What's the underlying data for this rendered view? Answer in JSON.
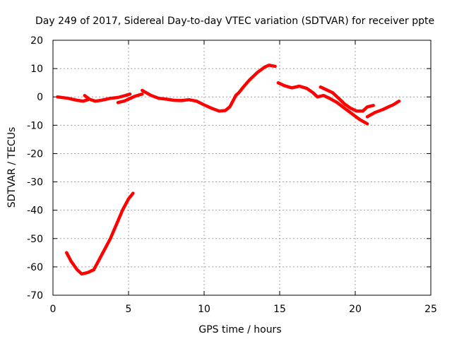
{
  "chart_data": {
    "type": "scatter",
    "title": "Day 249 of 2017, Sidereal Day-to-day VTEC variation (SDTVAR) for receiver ppte",
    "xlabel": "GPS time / hours",
    "ylabel": "SDTVAR / TECUs",
    "xlim": [
      0,
      25
    ],
    "ylim": [
      -70,
      20
    ],
    "xticks": [
      0,
      5,
      10,
      15,
      20,
      25
    ],
    "yticks": [
      -70,
      -60,
      -50,
      -40,
      -30,
      -20,
      -10,
      0,
      10,
      20
    ],
    "grid": true,
    "series_color": "#ff0000",
    "series": [
      {
        "name": "seg1",
        "points": [
          [
            0.3,
            0
          ],
          [
            1.0,
            -0.5
          ],
          [
            1.6,
            -1.2
          ],
          [
            2.0,
            -1.5
          ],
          [
            2.3,
            -1.0
          ]
        ]
      },
      {
        "name": "seg2",
        "points": [
          [
            2.1,
            0.5
          ],
          [
            2.4,
            -0.8
          ],
          [
            2.8,
            -1.5
          ],
          [
            3.2,
            -1.2
          ],
          [
            3.8,
            -0.5
          ],
          [
            4.3,
            -0.2
          ],
          [
            4.8,
            0.5
          ],
          [
            5.1,
            1.0
          ]
        ]
      },
      {
        "name": "seg3",
        "points": [
          [
            4.3,
            -2.0
          ],
          [
            4.7,
            -1.5
          ],
          [
            5.0,
            -0.8
          ],
          [
            5.4,
            0.2
          ],
          [
            5.9,
            1.0
          ]
        ]
      },
      {
        "name": "seg4",
        "points": [
          [
            0.9,
            -55
          ],
          [
            1.2,
            -58
          ],
          [
            1.6,
            -61
          ],
          [
            1.9,
            -62.5
          ],
          [
            2.3,
            -62
          ],
          [
            2.7,
            -61
          ],
          [
            3.0,
            -58
          ],
          [
            3.4,
            -54
          ],
          [
            3.8,
            -50
          ],
          [
            4.2,
            -45
          ],
          [
            4.6,
            -40
          ],
          [
            5.0,
            -36
          ],
          [
            5.3,
            -34
          ]
        ]
      },
      {
        "name": "seg5",
        "points": [
          [
            5.9,
            2.3
          ],
          [
            6.5,
            0.5
          ],
          [
            7.0,
            -0.5
          ],
          [
            7.5,
            -0.8
          ],
          [
            8.0,
            -1.2
          ],
          [
            8.5,
            -1.3
          ],
          [
            9.0,
            -1.0
          ],
          [
            9.5,
            -1.5
          ],
          [
            10.0,
            -2.8
          ],
          [
            10.5,
            -4.0
          ],
          [
            11.0,
            -5.0
          ],
          [
            11.4,
            -4.8
          ],
          [
            11.7,
            -3.5
          ],
          [
            11.9,
            -1.5
          ],
          [
            12.1,
            0.5
          ],
          [
            12.3,
            1.5
          ],
          [
            12.6,
            3.5
          ],
          [
            13.0,
            6.0
          ],
          [
            13.5,
            8.5
          ],
          [
            14.0,
            10.5
          ],
          [
            14.3,
            11.2
          ],
          [
            14.7,
            10.8
          ]
        ]
      },
      {
        "name": "seg6",
        "points": [
          [
            14.9,
            5.0
          ],
          [
            15.3,
            4.0
          ],
          [
            15.8,
            3.2
          ],
          [
            16.3,
            3.8
          ],
          [
            16.8,
            3.0
          ],
          [
            17.2,
            1.5
          ],
          [
            17.5,
            0.0
          ],
          [
            17.9,
            0.5
          ],
          [
            18.3,
            -0.5
          ],
          [
            18.8,
            -2.0
          ],
          [
            19.3,
            -4.0
          ],
          [
            19.8,
            -6.0
          ],
          [
            20.3,
            -8.0
          ],
          [
            20.8,
            -9.5
          ]
        ]
      },
      {
        "name": "seg7",
        "points": [
          [
            17.7,
            3.5
          ],
          [
            18.1,
            2.5
          ],
          [
            18.5,
            1.5
          ],
          [
            18.9,
            -0.5
          ],
          [
            19.3,
            -2.5
          ],
          [
            19.7,
            -4.0
          ],
          [
            20.1,
            -5.0
          ],
          [
            20.5,
            -5.0
          ],
          [
            20.8,
            -3.5
          ],
          [
            21.2,
            -3.0
          ]
        ]
      },
      {
        "name": "seg8",
        "points": [
          [
            20.8,
            -7.0
          ],
          [
            21.3,
            -5.5
          ],
          [
            21.8,
            -4.5
          ],
          [
            22.2,
            -3.5
          ],
          [
            22.5,
            -2.8
          ],
          [
            22.9,
            -1.5
          ]
        ]
      }
    ]
  }
}
